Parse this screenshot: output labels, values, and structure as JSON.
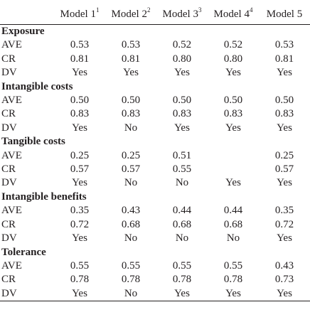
{
  "columns": [
    {
      "label": "Model 1",
      "sup": "1"
    },
    {
      "label": "Model 2",
      "sup": "2"
    },
    {
      "label": "Model 3",
      "sup": "3"
    },
    {
      "label": "Model 4",
      "sup": "4"
    },
    {
      "label": "Model 5",
      "sup": ""
    }
  ],
  "sections": [
    {
      "title": "Exposure",
      "rows": [
        {
          "label": "AVE",
          "values": [
            "0.53",
            "0.53",
            "0.52",
            "0.52",
            "0.53"
          ]
        },
        {
          "label": "CR",
          "values": [
            "0.81",
            "0.81",
            "0.80",
            "0.80",
            "0.81"
          ]
        },
        {
          "label": "DV",
          "values": [
            "Yes",
            "Yes",
            "Yes",
            "Yes",
            "Yes"
          ]
        }
      ]
    },
    {
      "title": "Intangible costs",
      "rows": [
        {
          "label": "AVE",
          "values": [
            "0.50",
            "0.50",
            "0.50",
            "0.50",
            "0.50"
          ]
        },
        {
          "label": "CR",
          "values": [
            "0.83",
            "0.83",
            "0.83",
            "0.83",
            "0.83"
          ]
        },
        {
          "label": "DV",
          "values": [
            "Yes",
            "No",
            "Yes",
            "Yes",
            "Yes"
          ]
        }
      ]
    },
    {
      "title": "Tangible costs",
      "rows": [
        {
          "label": "AVE",
          "values": [
            "0.25",
            "0.25",
            "0.51",
            "",
            "0.25"
          ]
        },
        {
          "label": "CR",
          "values": [
            "0.57",
            "0.57",
            "0.55",
            "",
            "0.57"
          ]
        },
        {
          "label": "DV",
          "values": [
            "Yes",
            "No",
            "No",
            "Yes",
            "Yes"
          ]
        }
      ]
    },
    {
      "title": "Intangible benefits",
      "rows": [
        {
          "label": "AVE",
          "values": [
            "0.35",
            "0.43",
            "0.44",
            "0.44",
            "0.35"
          ]
        },
        {
          "label": "CR",
          "values": [
            "0.72",
            "0.68",
            "0.68",
            "0.68",
            "0.72"
          ]
        },
        {
          "label": "DV",
          "values": [
            "Yes",
            "No",
            "No",
            "No",
            "Yes"
          ]
        }
      ]
    },
    {
      "title": "Tolerance",
      "rows": [
        {
          "label": "AVE",
          "values": [
            "0.55",
            "0.55",
            "0.55",
            "0.55",
            "0.43"
          ]
        },
        {
          "label": "CR",
          "values": [
            "0.78",
            "0.78",
            "0.78",
            "0.78",
            "0.73"
          ]
        },
        {
          "label": "DV",
          "values": [
            "Yes",
            "No",
            "Yes",
            "Yes",
            "Yes"
          ]
        }
      ]
    }
  ]
}
